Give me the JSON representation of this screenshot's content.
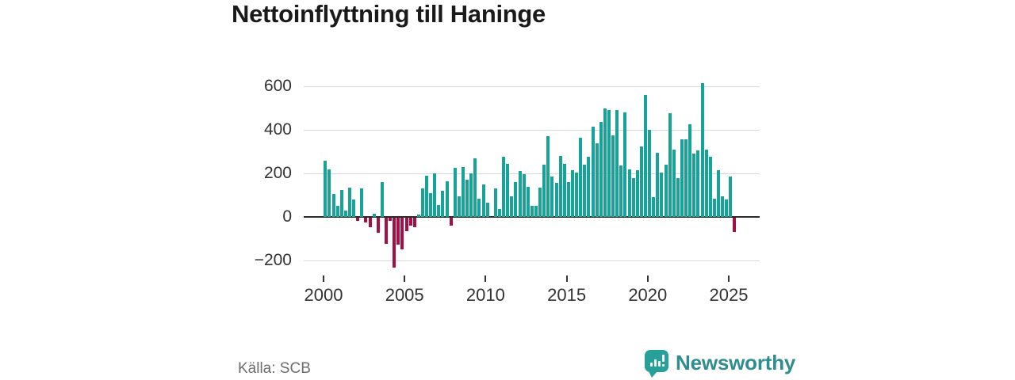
{
  "title": "Nettoinflyttning till Haninge",
  "source": {
    "label": "Källa: SCB"
  },
  "branding": {
    "name": "Newsworthy",
    "icon": "chart-bars-exclamation-icon",
    "icon_color": "#27a09a",
    "text_color": "#2e8d90"
  },
  "colors": {
    "positive_bar": "#17a398",
    "negative_bar": "#a50f44",
    "gridline": "#d9d9d9",
    "zero_line": "#2b2b2b",
    "axis_text": "#333333",
    "source_text": "#6e6e6e"
  },
  "chart_data": {
    "type": "bar",
    "title": "Nettoinflyttning till Haninge",
    "x_unit": "quarter",
    "start": "2000-Q1",
    "end": "2025-Q2",
    "quarters_per_year": 4,
    "x_tick_labels": [
      "2000",
      "2005",
      "2010",
      "2015",
      "2020",
      "2025"
    ],
    "x_tick_interval_years": 5,
    "y_ticks": [
      600,
      400,
      200,
      0,
      -200
    ],
    "ylim": [
      -290,
      645
    ],
    "grid": true,
    "legend": false,
    "series": [
      {
        "name": "Nettoinflyttning",
        "values": [
          260,
          220,
          105,
          50,
          125,
          30,
          135,
          80,
          -15,
          130,
          -20,
          -45,
          15,
          -70,
          160,
          -120,
          -15,
          -230,
          -125,
          -145,
          -60,
          -35,
          -45,
          10,
          130,
          190,
          110,
          200,
          55,
          120,
          165,
          -35,
          225,
          95,
          230,
          170,
          200,
          270,
          85,
          150,
          65,
          0,
          130,
          35,
          275,
          245,
          95,
          160,
          210,
          195,
          140,
          50,
          50,
          135,
          240,
          370,
          185,
          155,
          280,
          245,
          160,
          215,
          205,
          365,
          240,
          275,
          415,
          340,
          435,
          500,
          490,
          375,
          490,
          235,
          480,
          220,
          180,
          215,
          325,
          560,
          400,
          90,
          295,
          205,
          240,
          475,
          310,
          180,
          355,
          355,
          425,
          290,
          305,
          615,
          310,
          275,
          85,
          215,
          95,
          80,
          185,
          -65
        ]
      }
    ]
  }
}
